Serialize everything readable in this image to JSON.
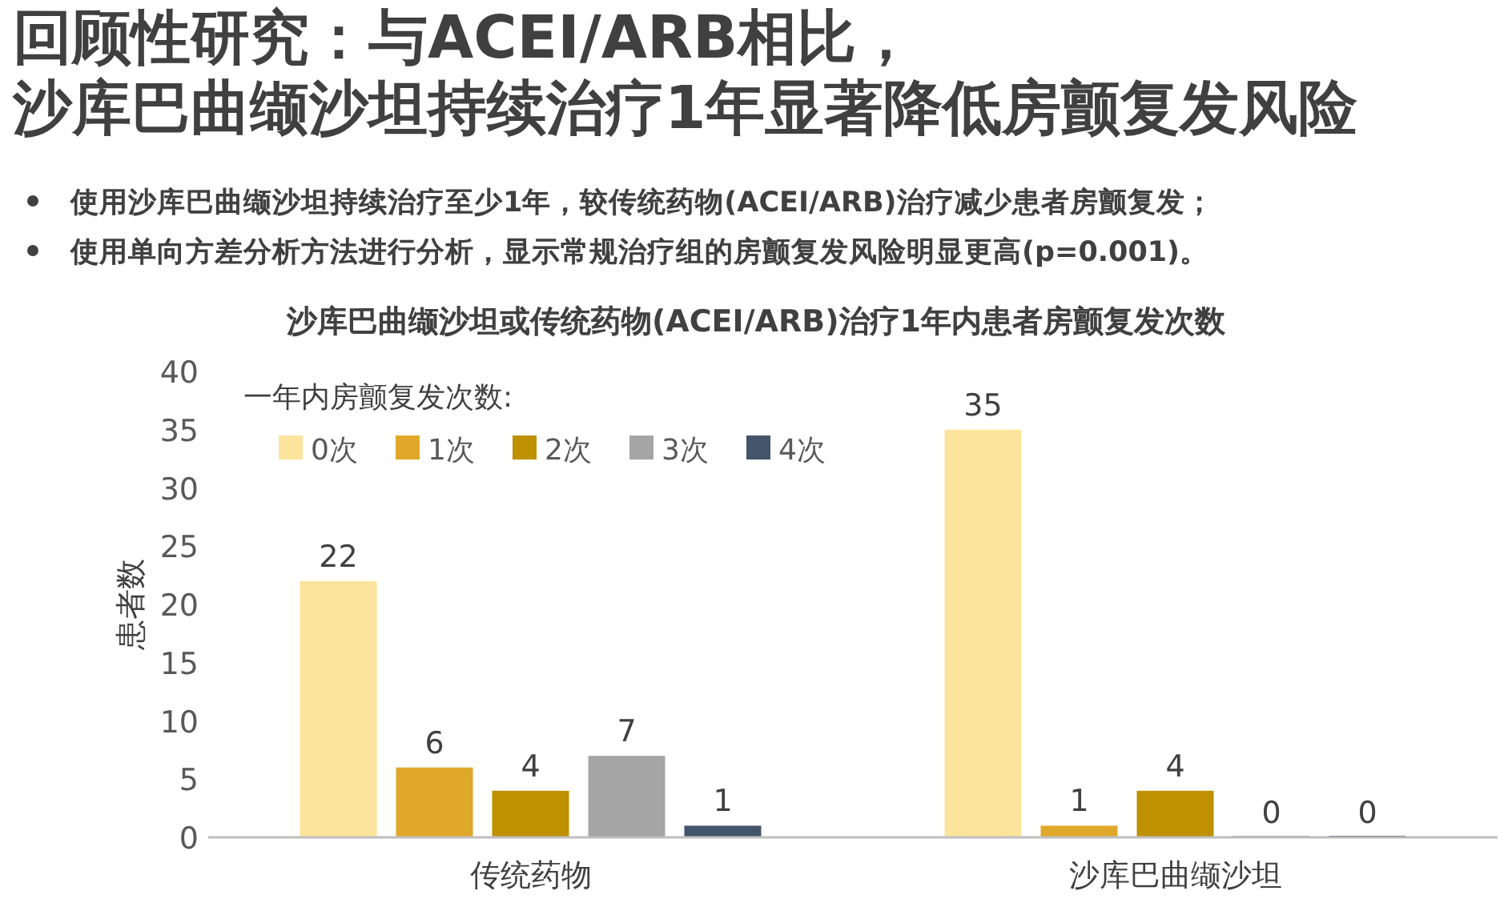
{
  "chart_data": {
    "type": "bar",
    "title": "回顾性研究：与ACEI/ARB相比，",
    "subtitle": "沙库巴曲缬沙坦持续治疗1年显著降低房颤复发风险",
    "annotations": [
      "使用沙库巴曲缬沙坦持续治疗至少1年，较传统药物(ACEI/ARB)治疗减少患者房颤复发；",
      "使用单向方差分析方法进行分析，显示常规治疗组的房颤复发风险明显更高(p=0.001)。",
      "沙库巴曲缬沙坦或传统药物(ACEI/ARB)治疗1年内患者房颤复发次数"
    ],
    "ylabel": "患者数",
    "legend_title": "一年内房颤复发次数:",
    "legend": "top left",
    "data_labels": true,
    "categories": [
      "传统药物",
      "沙库巴曲缬沙坦"
    ],
    "ylim": [
      0,
      40
    ],
    "yticks": [
      0,
      5,
      10,
      15,
      20,
      25,
      30,
      35,
      40
    ],
    "series": [
      {
        "name": "0次",
        "color": "#fce49c",
        "values": [
          22,
          35
        ]
      },
      {
        "name": "1次",
        "color": "#e0a82a",
        "values": [
          6,
          1
        ]
      },
      {
        "name": "2次",
        "color": "#bf9000",
        "values": [
          4,
          4
        ]
      },
      {
        "name": "3次",
        "color": "#a5a5a5",
        "values": [
          7,
          0
        ]
      },
      {
        "name": "4次",
        "color": "#44546a",
        "values": [
          1,
          0
        ]
      }
    ]
  }
}
